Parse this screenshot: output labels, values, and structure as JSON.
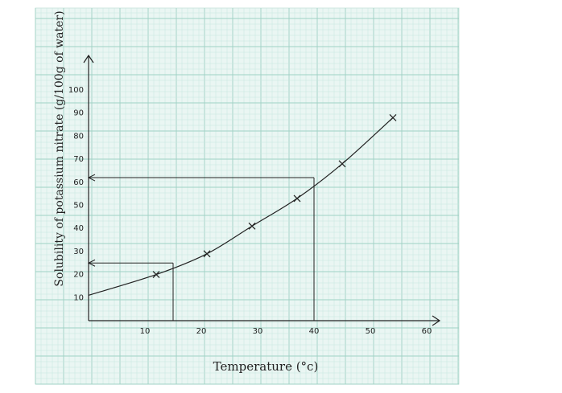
{
  "chart_data": {
    "type": "line",
    "xlabel": "Temperature (°c)",
    "ylabel": "Solubility of potassium nitrate (g/100g of water)",
    "x_ticks": [
      "10",
      "20",
      "30",
      "40",
      "50",
      "60"
    ],
    "y_ticks": [
      "10",
      "20",
      "30",
      "40",
      "50",
      "60",
      "70",
      "80",
      "90",
      "100"
    ],
    "xlim": [
      0,
      60
    ],
    "ylim": [
      0,
      105
    ],
    "grid": true,
    "series": [
      {
        "marker": "x",
        "points": [
          {
            "x": 12,
            "y": 20
          },
          {
            "x": 21,
            "y": 29
          },
          {
            "x": 29,
            "y": 41
          },
          {
            "x": 37,
            "y": 53
          },
          {
            "x": 45,
            "y": 68
          },
          {
            "x": 54,
            "y": 88
          }
        ],
        "curve_start": {
          "x": 0,
          "y": 11
        }
      }
    ],
    "reading_lines": [
      {
        "x": 15,
        "y": 25
      },
      {
        "x": 40,
        "y": 62
      }
    ],
    "colors": {
      "grid_minor": "#c6e6de",
      "grid_major": "#9fd1c4",
      "background": "#eaf6f3",
      "ink": "#222222"
    }
  }
}
